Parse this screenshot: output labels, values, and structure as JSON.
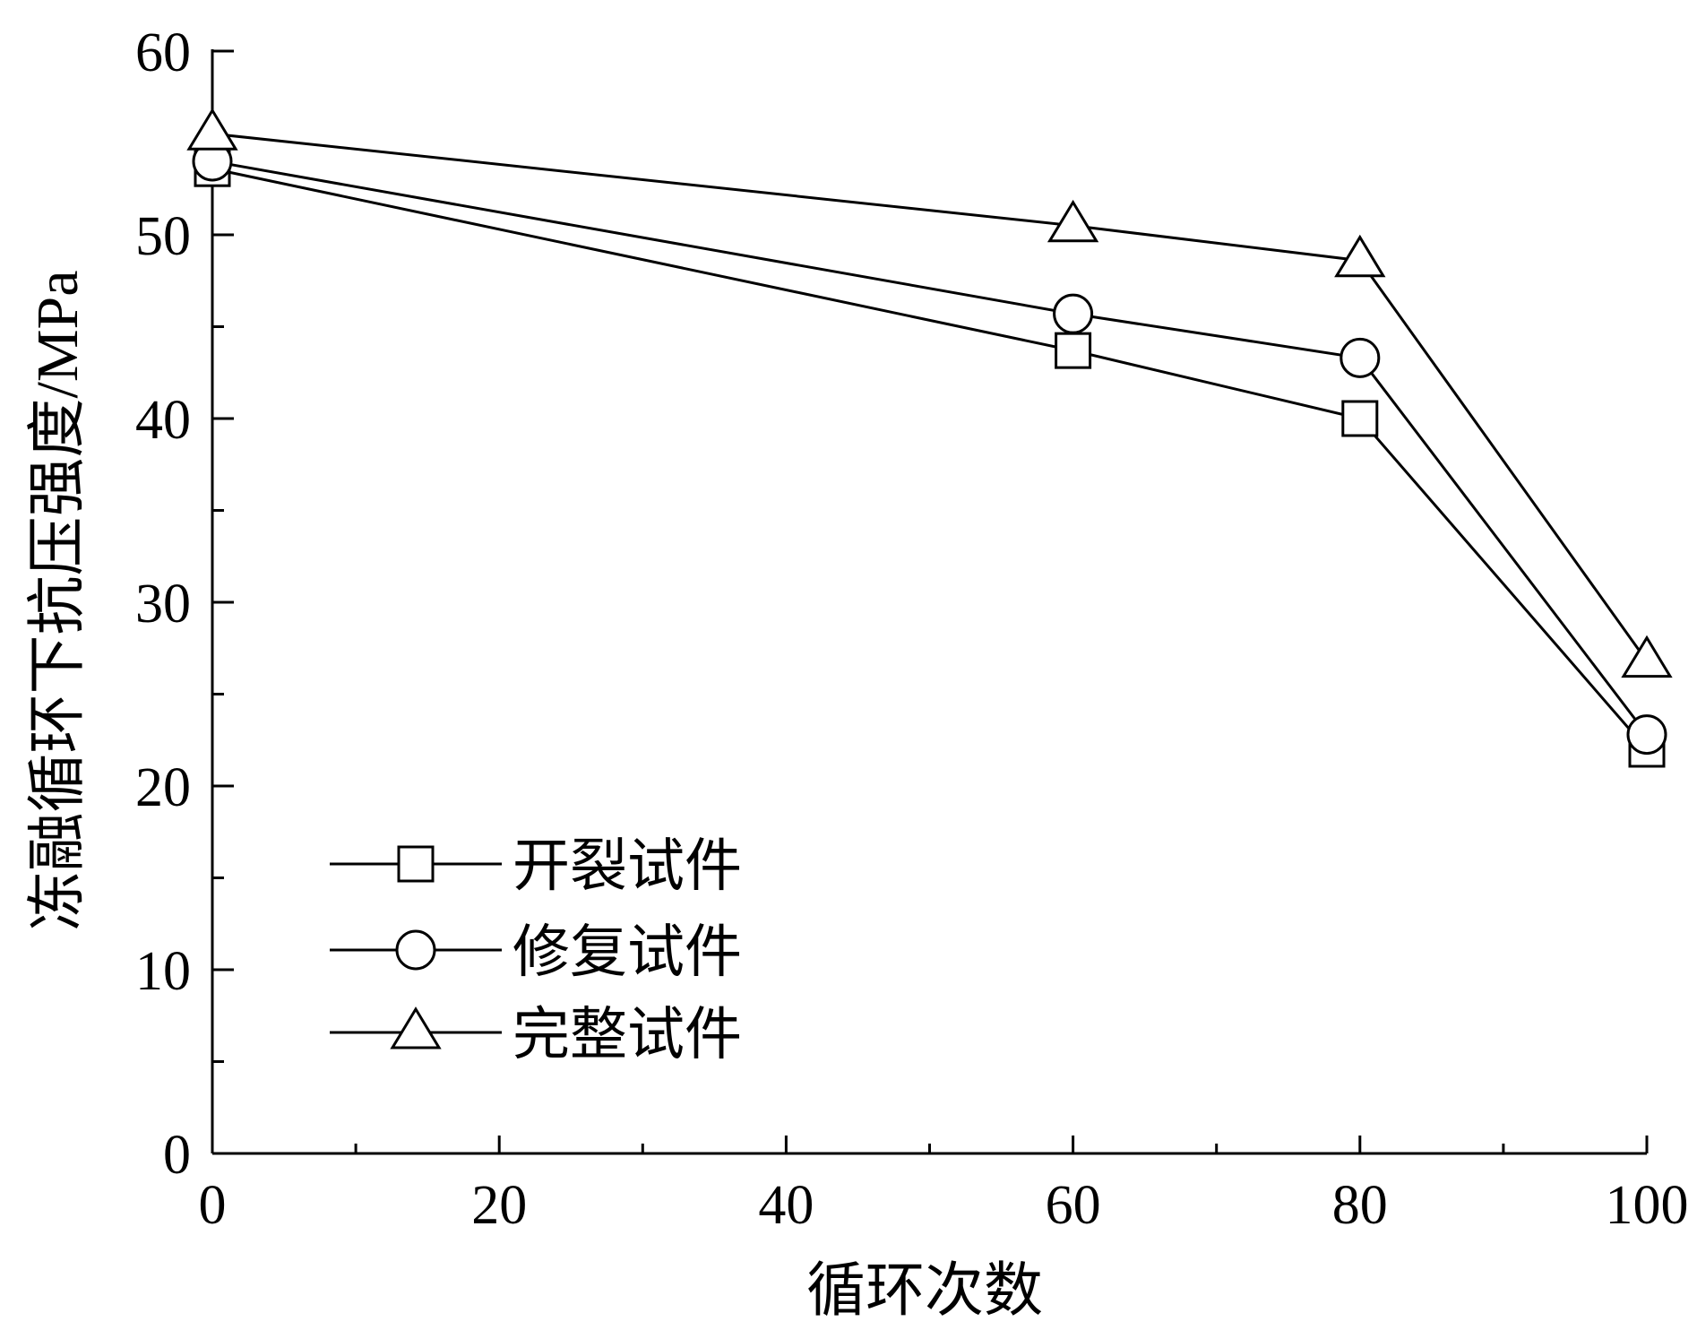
{
  "chart_data": {
    "type": "line",
    "title": "",
    "xlabel": "循环次数",
    "ylabel": "冻融循环下抗压强度/MPa",
    "xlim": [
      0,
      100
    ],
    "ylim": [
      0,
      60
    ],
    "x_ticks": [
      0,
      20,
      40,
      60,
      80,
      100
    ],
    "y_ticks": [
      0,
      10,
      20,
      30,
      40,
      50,
      60
    ],
    "grid": false,
    "legend_position": "bottom-left",
    "x": [
      0,
      60,
      80,
      100
    ],
    "series": [
      {
        "name": "开裂试件",
        "marker": "square",
        "values": [
          53.6,
          43.7,
          40.0,
          22.0
        ]
      },
      {
        "name": "修复试件",
        "marker": "circle",
        "values": [
          54.0,
          45.7,
          43.3,
          22.8
        ]
      },
      {
        "name": "完整试件",
        "marker": "triangle",
        "values": [
          55.5,
          50.5,
          48.6,
          26.8
        ]
      }
    ]
  }
}
